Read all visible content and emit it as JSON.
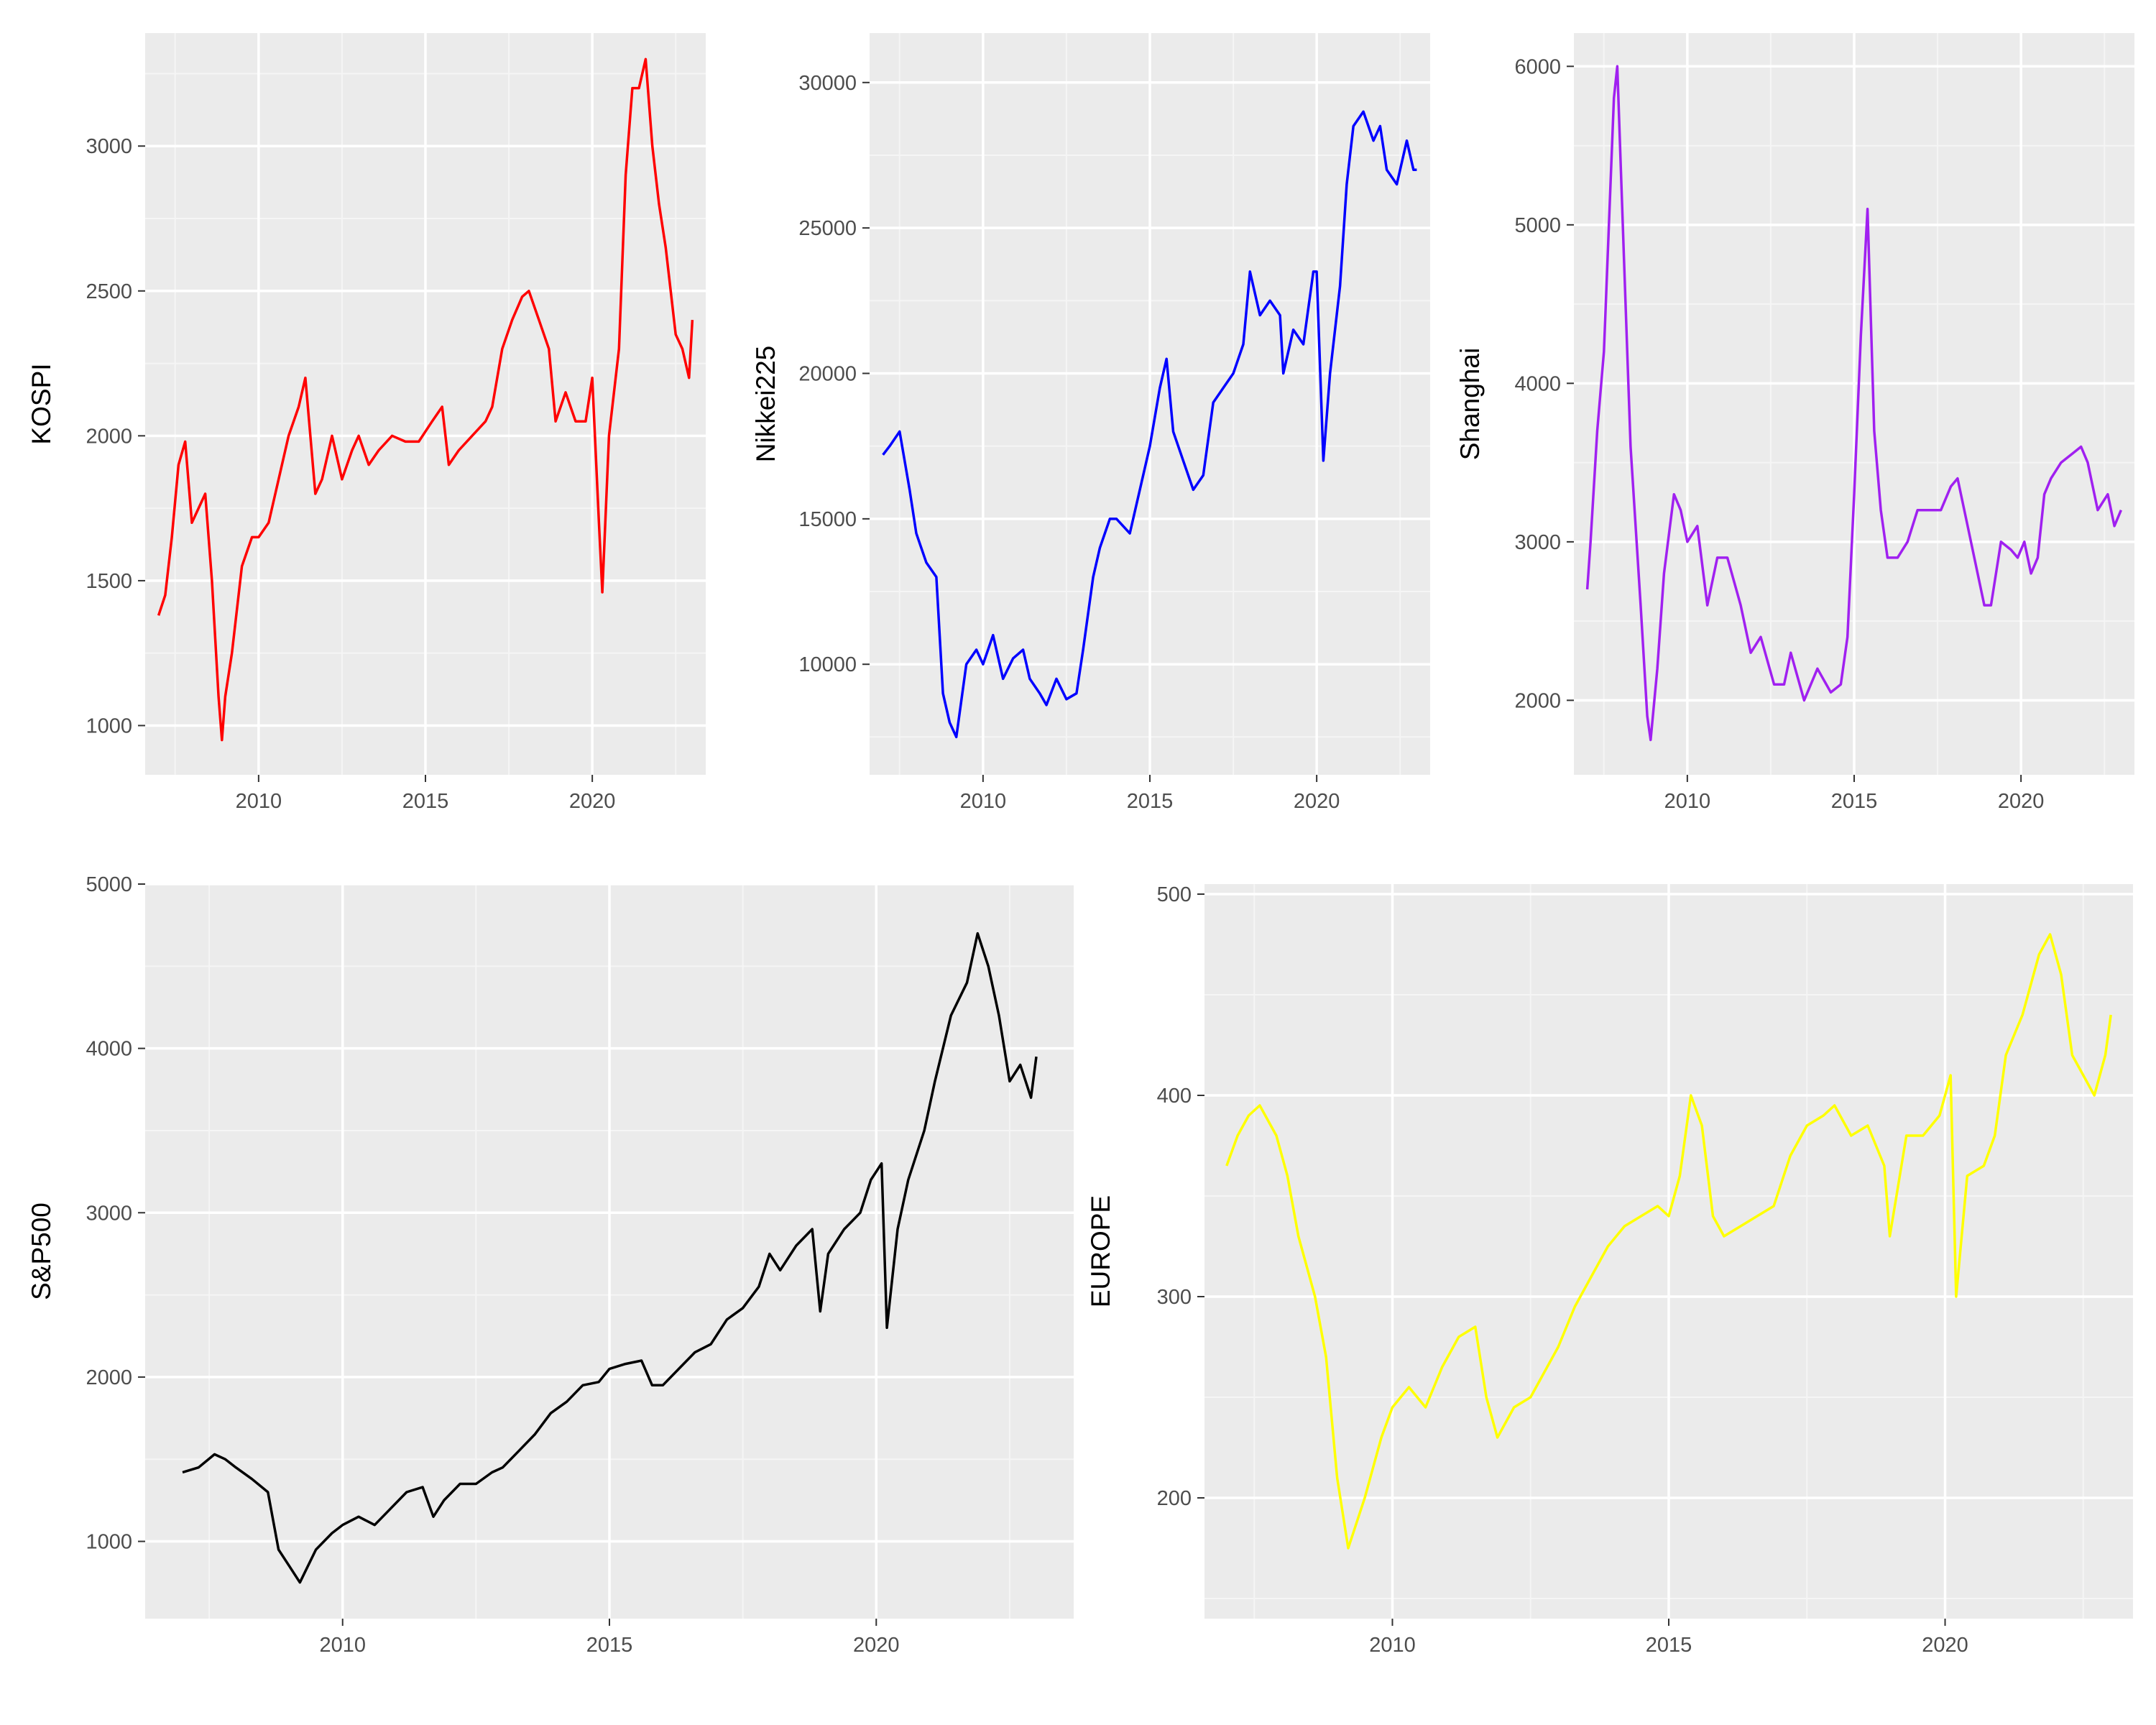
{
  "figure": {
    "background": "#ffffff",
    "panel_background": "#ebebeb",
    "grid_major": "#ffffff",
    "grid_minor": "#f5f5f5",
    "tick_color": "#333333",
    "text_color": "#4d4d4d"
  },
  "chart_data": [
    {
      "type": "line",
      "name": "KOSPI",
      "ylabel": "KOSPI",
      "xlabel": "",
      "color": "#ff0000",
      "x_ticks": [
        2010,
        2015,
        2020
      ],
      "y_ticks": [
        1000,
        1500,
        2000,
        2500,
        3000
      ],
      "xlim": [
        2006.6,
        2023.4
      ],
      "ylim": [
        830,
        3390
      ],
      "grid": true,
      "series": [
        {
          "x": [
            2007.0,
            2007.2,
            2007.4,
            2007.6,
            2007.8,
            2008.0,
            2008.2,
            2008.4,
            2008.6,
            2008.8,
            2008.9,
            2009.0,
            2009.2,
            2009.5,
            2009.8,
            2010.0,
            2010.3,
            2010.6,
            2010.9,
            2011.2,
            2011.4,
            2011.7,
            2011.9,
            2012.2,
            2012.5,
            2012.8,
            2013.0,
            2013.3,
            2013.6,
            2014.0,
            2014.4,
            2014.8,
            2015.2,
            2015.5,
            2015.7,
            2016.0,
            2016.4,
            2016.8,
            2017.0,
            2017.3,
            2017.6,
            2017.9,
            2018.1,
            2018.4,
            2018.7,
            2018.9,
            2019.2,
            2019.5,
            2019.8,
            2020.0,
            2020.2,
            2020.3,
            2020.5,
            2020.8,
            2021.0,
            2021.2,
            2021.4,
            2021.6,
            2021.8,
            2022.0,
            2022.2,
            2022.5,
            2022.7,
            2022.9,
            2023.0
          ],
          "y": [
            1380,
            1450,
            1650,
            1900,
            1980,
            1700,
            1750,
            1800,
            1500,
            1100,
            950,
            1100,
            1250,
            1550,
            1650,
            1650,
            1700,
            1850,
            2000,
            2100,
            2200,
            1800,
            1850,
            2000,
            1850,
            1950,
            2000,
            1900,
            1950,
            2000,
            1980,
            1980,
            2050,
            2100,
            1900,
            1950,
            2000,
            2050,
            2100,
            2300,
            2400,
            2480,
            2500,
            2400,
            2300,
            2050,
            2150,
            2050,
            2050,
            2200,
            1700,
            1460,
            2000,
            2300,
            2900,
            3200,
            3200,
            3300,
            3000,
            2800,
            2650,
            2350,
            2300,
            2200,
            2400
          ]
        }
      ]
    },
    {
      "type": "line",
      "name": "Nikkei225",
      "ylabel": "Nikkei225",
      "xlabel": "",
      "color": "#0000ff",
      "x_ticks": [
        2010,
        2015,
        2020
      ],
      "y_ticks": [
        10000,
        15000,
        20000,
        25000,
        30000
      ],
      "xlim": [
        2006.6,
        2023.4
      ],
      "ylim": [
        6200,
        31700
      ],
      "grid": true,
      "series": [
        {
          "x": [
            2007.0,
            2007.2,
            2007.5,
            2007.8,
            2008.0,
            2008.3,
            2008.6,
            2008.8,
            2009.0,
            2009.2,
            2009.5,
            2009.8,
            2010.0,
            2010.3,
            2010.6,
            2010.9,
            2011.2,
            2011.4,
            2011.7,
            2011.9,
            2012.2,
            2012.5,
            2012.8,
            2013.0,
            2013.3,
            2013.5,
            2013.8,
            2014.0,
            2014.4,
            2014.8,
            2015.0,
            2015.3,
            2015.5,
            2015.7,
            2016.0,
            2016.3,
            2016.6,
            2016.9,
            2017.2,
            2017.5,
            2017.8,
            2018.0,
            2018.3,
            2018.6,
            2018.9,
            2019.0,
            2019.3,
            2019.6,
            2019.9,
            2020.0,
            2020.2,
            2020.4,
            2020.7,
            2020.9,
            2021.1,
            2021.4,
            2021.7,
            2021.9,
            2022.1,
            2022.4,
            2022.7,
            2022.9,
            2023.0
          ],
          "y": [
            17200,
            17500,
            18000,
            16000,
            14500,
            13500,
            13000,
            9000,
            8000,
            7500,
            10000,
            10500,
            10000,
            11000,
            9500,
            10200,
            10500,
            9500,
            9000,
            8600,
            9500,
            8800,
            9000,
            10500,
            13000,
            14000,
            15000,
            15000,
            14500,
            16500,
            17500,
            19500,
            20500,
            18000,
            17000,
            16000,
            16500,
            19000,
            19500,
            20000,
            21000,
            23500,
            22000,
            22500,
            22000,
            20000,
            21500,
            21000,
            23500,
            23500,
            17000,
            20000,
            23000,
            26500,
            28500,
            29000,
            28000,
            28500,
            27000,
            26500,
            28000,
            27000,
            27000
          ]
        }
      ]
    },
    {
      "type": "line",
      "name": "Shanghai",
      "ylabel": "Shanghai",
      "xlabel": "",
      "color": "#a020f0",
      "x_ticks": [
        2010,
        2015,
        2020
      ],
      "y_ticks": [
        2000,
        3000,
        4000,
        5000,
        6000
      ],
      "xlim": [
        2006.6,
        2023.4
      ],
      "ylim": [
        1530,
        6210
      ],
      "grid": true,
      "series": [
        {
          "x": [
            2007.0,
            2007.1,
            2007.3,
            2007.5,
            2007.8,
            2007.9,
            2008.1,
            2008.3,
            2008.6,
            2008.8,
            2008.9,
            2009.1,
            2009.3,
            2009.6,
            2009.8,
            2010.0,
            2010.3,
            2010.6,
            2010.9,
            2011.2,
            2011.6,
            2011.9,
            2012.2,
            2012.6,
            2012.9,
            2013.1,
            2013.5,
            2013.9,
            2014.3,
            2014.6,
            2014.8,
            2015.0,
            2015.2,
            2015.4,
            2015.6,
            2015.8,
            2016.0,
            2016.3,
            2016.6,
            2016.9,
            2017.2,
            2017.6,
            2017.9,
            2018.1,
            2018.4,
            2018.7,
            2018.9,
            2019.1,
            2019.4,
            2019.7,
            2019.9,
            2020.1,
            2020.3,
            2020.5,
            2020.7,
            2020.9,
            2021.2,
            2021.5,
            2021.8,
            2022.0,
            2022.3,
            2022.6,
            2022.8,
            2023.0
          ],
          "y": [
            2700,
            3000,
            3700,
            4200,
            5800,
            6000,
            4800,
            3600,
            2600,
            1900,
            1750,
            2200,
            2800,
            3300,
            3200,
            3000,
            3100,
            2600,
            2900,
            2900,
            2600,
            2300,
            2400,
            2100,
            2100,
            2300,
            2000,
            2200,
            2050,
            2100,
            2400,
            3300,
            4300,
            5100,
            3700,
            3200,
            2900,
            2900,
            3000,
            3200,
            3200,
            3200,
            3350,
            3400,
            3100,
            2800,
            2600,
            2600,
            3000,
            2950,
            2900,
            3000,
            2800,
            2900,
            3300,
            3400,
            3500,
            3550,
            3600,
            3500,
            3200,
            3300,
            3100,
            3200
          ]
        }
      ]
    },
    {
      "type": "line",
      "name": "S&P500",
      "ylabel": "S&P500",
      "xlabel": "",
      "color": "#000000",
      "x_ticks": [
        2010,
        2015,
        2020
      ],
      "y_ticks": [
        1000,
        2000,
        3000,
        4000,
        5000
      ],
      "xlim": [
        2006.3,
        2023.7
      ],
      "ylim": [
        530,
        5000
      ],
      "grid": true,
      "series": [
        {
          "x": [
            2007.0,
            2007.3,
            2007.6,
            2007.8,
            2008.0,
            2008.3,
            2008.6,
            2008.8,
            2009.0,
            2009.2,
            2009.5,
            2009.8,
            2010.0,
            2010.3,
            2010.6,
            2010.9,
            2011.2,
            2011.5,
            2011.7,
            2011.9,
            2012.2,
            2012.5,
            2012.8,
            2013.0,
            2013.3,
            2013.6,
            2013.9,
            2014.2,
            2014.5,
            2014.8,
            2015.0,
            2015.3,
            2015.6,
            2015.8,
            2016.0,
            2016.3,
            2016.6,
            2016.9,
            2017.2,
            2017.5,
            2017.8,
            2018.0,
            2018.2,
            2018.5,
            2018.8,
            2018.95,
            2019.1,
            2019.4,
            2019.7,
            2019.9,
            2020.1,
            2020.2,
            2020.4,
            2020.6,
            2020.9,
            2021.1,
            2021.4,
            2021.7,
            2021.9,
            2022.1,
            2022.3,
            2022.5,
            2022.7,
            2022.9,
            2023.0
          ],
          "y": [
            1420,
            1450,
            1530,
            1500,
            1450,
            1380,
            1300,
            950,
            850,
            750,
            950,
            1050,
            1100,
            1150,
            1100,
            1200,
            1300,
            1330,
            1150,
            1250,
            1350,
            1350,
            1420,
            1450,
            1550,
            1650,
            1780,
            1850,
            1950,
            1970,
            2050,
            2080,
            2100,
            1950,
            1950,
            2050,
            2150,
            2200,
            2350,
            2420,
            2550,
            2750,
            2650,
            2800,
            2900,
            2400,
            2750,
            2900,
            3000,
            3200,
            3300,
            2300,
            2900,
            3200,
            3500,
            3800,
            4200,
            4400,
            4700,
            4500,
            4200,
            3800,
            3900,
            3700,
            3950
          ]
        }
      ]
    },
    {
      "type": "line",
      "name": "EUROPE",
      "ylabel": "EUROPE",
      "xlabel": "",
      "color": "#ffff00",
      "x_ticks": [
        2010,
        2015,
        2020
      ],
      "y_ticks": [
        200,
        300,
        400,
        500
      ],
      "xlim": [
        2006.6,
        2023.4
      ],
      "ylim": [
        140,
        505
      ],
      "grid": true,
      "series": [
        {
          "x": [
            2007.0,
            2007.2,
            2007.4,
            2007.6,
            2007.9,
            2008.1,
            2008.3,
            2008.6,
            2008.8,
            2009.0,
            2009.2,
            2009.5,
            2009.8,
            2010.0,
            2010.3,
            2010.6,
            2010.9,
            2011.2,
            2011.5,
            2011.7,
            2011.9,
            2012.2,
            2012.5,
            2012.8,
            2013.0,
            2013.3,
            2013.6,
            2013.9,
            2014.2,
            2014.5,
            2014.8,
            2015.0,
            2015.2,
            2015.4,
            2015.6,
            2015.8,
            2016.0,
            2016.3,
            2016.6,
            2016.9,
            2017.2,
            2017.5,
            2017.8,
            2018.0,
            2018.3,
            2018.6,
            2018.9,
            2019.0,
            2019.3,
            2019.6,
            2019.9,
            2020.1,
            2020.2,
            2020.4,
            2020.7,
            2020.9,
            2021.1,
            2021.4,
            2021.7,
            2021.9,
            2022.1,
            2022.3,
            2022.5,
            2022.7,
            2022.9,
            2023.0
          ],
          "y": [
            365,
            380,
            390,
            395,
            380,
            360,
            330,
            300,
            270,
            210,
            175,
            200,
            230,
            245,
            255,
            245,
            265,
            280,
            285,
            250,
            230,
            245,
            250,
            265,
            275,
            295,
            310,
            325,
            335,
            340,
            345,
            340,
            360,
            400,
            385,
            340,
            330,
            335,
            340,
            345,
            370,
            385,
            390,
            395,
            380,
            385,
            365,
            330,
            380,
            380,
            390,
            410,
            300,
            360,
            365,
            380,
            420,
            440,
            470,
            480,
            460,
            420,
            410,
            400,
            420,
            440
          ]
        }
      ]
    }
  ]
}
